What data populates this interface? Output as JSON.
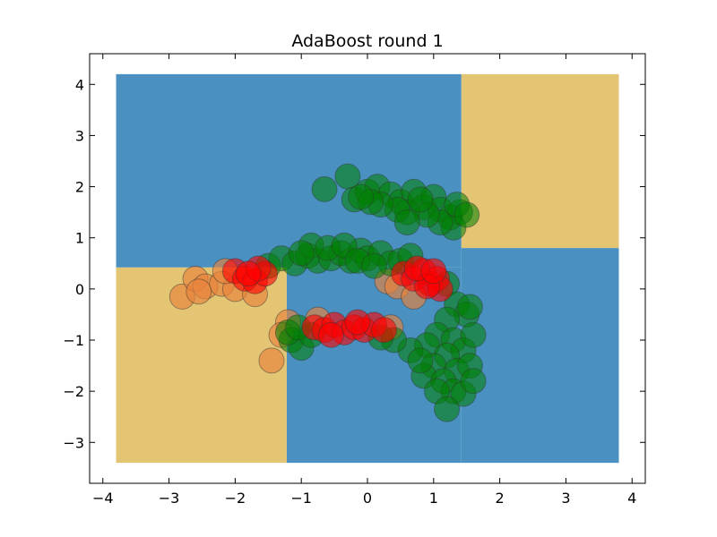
{
  "chart_data": {
    "type": "scatter",
    "title": "AdaBoost round 1",
    "xlabel": "",
    "ylabel": "",
    "xlim": [
      -4.2,
      4.2
    ],
    "ylim": [
      -3.8,
      4.6
    ],
    "x_ticks": [
      -4,
      -3,
      -2,
      -1,
      0,
      1,
      2,
      3,
      4
    ],
    "y_ticks": [
      -3,
      -2,
      -1,
      0,
      1,
      2,
      3,
      4
    ],
    "x_tick_labels": [
      "−4",
      "−3",
      "−2",
      "−1",
      "0",
      "1",
      "2",
      "3",
      "4"
    ],
    "y_tick_labels": [
      "−3",
      "−2",
      "−1",
      "0",
      "1",
      "2",
      "3",
      "4"
    ],
    "grid": false,
    "colors": {
      "region_a": "#4a91c2",
      "region_b": "#e3c574",
      "green_points": "#008000",
      "red_points": "#ff0000",
      "orange_points": "#e8823c"
    },
    "decision_regions": [
      {
        "class": "region_a",
        "x": [
          -3.8,
          1.42
        ],
        "y": [
          0.42,
          4.2
        ]
      },
      {
        "class": "region_b",
        "x": [
          1.42,
          3.8
        ],
        "y": [
          0.8,
          4.2
        ]
      },
      {
        "class": "region_b",
        "x": [
          -3.8,
          -1.22
        ],
        "y": [
          -3.4,
          0.42
        ]
      },
      {
        "class": "region_a",
        "x": [
          -1.22,
          1.42
        ],
        "y": [
          -3.4,
          0.42
        ]
      },
      {
        "class": "region_a",
        "x": [
          1.42,
          3.8
        ],
        "y": [
          -3.4,
          0.8
        ]
      }
    ],
    "series": [
      {
        "class": "green",
        "points": [
          [
            -0.3,
            2.2
          ],
          [
            -0.65,
            1.95
          ],
          [
            -0.2,
            1.75
          ],
          [
            0.0,
            1.9
          ],
          [
            0.15,
            2.0
          ],
          [
            0.35,
            1.85
          ],
          [
            0.5,
            1.7
          ],
          [
            0.7,
            1.9
          ],
          [
            0.85,
            1.6
          ],
          [
            1.0,
            1.8
          ],
          [
            1.1,
            1.55
          ],
          [
            1.25,
            1.4
          ],
          [
            1.4,
            1.5
          ],
          [
            1.3,
            1.2
          ],
          [
            1.1,
            1.3
          ],
          [
            0.9,
            1.45
          ],
          [
            0.6,
            1.5
          ],
          [
            0.45,
            1.55
          ],
          [
            0.2,
            1.65
          ],
          [
            0.05,
            1.7
          ],
          [
            -0.1,
            1.8
          ],
          [
            0.6,
            1.3
          ],
          [
            1.35,
            1.65
          ],
          [
            1.5,
            1.45
          ],
          [
            0.8,
            1.75
          ],
          [
            -1.5,
            0.45
          ],
          [
            -1.3,
            0.6
          ],
          [
            -1.1,
            0.5
          ],
          [
            -0.9,
            0.65
          ],
          [
            -0.75,
            0.55
          ],
          [
            -0.55,
            0.6
          ],
          [
            -0.4,
            0.7
          ],
          [
            -0.25,
            0.55
          ],
          [
            -0.1,
            0.75
          ],
          [
            0.0,
            0.6
          ],
          [
            0.2,
            0.7
          ],
          [
            0.35,
            0.5
          ],
          [
            0.5,
            0.55
          ],
          [
            0.65,
            0.65
          ],
          [
            -0.85,
            0.85
          ],
          [
            -0.6,
            0.8
          ],
          [
            -0.35,
            0.85
          ],
          [
            -0.15,
            0.55
          ],
          [
            0.1,
            0.45
          ],
          [
            -1.0,
            0.7
          ],
          [
            1.2,
            0.1
          ],
          [
            1.35,
            -0.3
          ],
          [
            1.5,
            -0.5
          ],
          [
            1.2,
            -0.6
          ],
          [
            1.05,
            -0.9
          ],
          [
            0.9,
            -1.1
          ],
          [
            1.3,
            -1.0
          ],
          [
            1.45,
            -1.2
          ],
          [
            1.6,
            -0.9
          ],
          [
            1.2,
            -1.3
          ],
          [
            1.0,
            -1.5
          ],
          [
            1.35,
            -1.6
          ],
          [
            1.55,
            -1.5
          ],
          [
            0.85,
            -1.7
          ],
          [
            1.15,
            -1.8
          ],
          [
            1.3,
            -2.0
          ],
          [
            1.05,
            -2.0
          ],
          [
            1.45,
            -2.05
          ],
          [
            1.2,
            -2.35
          ],
          [
            0.65,
            -1.2
          ],
          [
            0.4,
            -1.0
          ],
          [
            0.2,
            -0.95
          ],
          [
            0.8,
            -1.4
          ],
          [
            1.6,
            -1.8
          ],
          [
            1.55,
            -0.35
          ],
          [
            -1.15,
            -1.0
          ],
          [
            -1.0,
            -1.15
          ],
          [
            -1.2,
            -0.85
          ],
          [
            -0.85,
            -0.9
          ],
          [
            -1.05,
            -0.75
          ]
        ]
      },
      {
        "class": "red",
        "points": [
          [
            -2.0,
            0.35
          ],
          [
            -1.85,
            0.2
          ],
          [
            -1.7,
            0.15
          ],
          [
            -1.55,
            0.3
          ],
          [
            -1.65,
            0.4
          ],
          [
            -1.8,
            0.3
          ],
          [
            0.55,
            0.3
          ],
          [
            0.7,
            0.2
          ],
          [
            0.85,
            0.35
          ],
          [
            0.95,
            0.1
          ],
          [
            1.05,
            0.2
          ],
          [
            1.1,
            0.0
          ],
          [
            0.9,
            0.05
          ],
          [
            0.75,
            0.4
          ],
          [
            1.0,
            0.35
          ],
          [
            -0.8,
            -0.75
          ],
          [
            -0.65,
            -0.8
          ],
          [
            -0.5,
            -0.7
          ],
          [
            -0.35,
            -0.85
          ],
          [
            -0.2,
            -0.75
          ],
          [
            -0.05,
            -0.8
          ],
          [
            0.1,
            -0.7
          ],
          [
            0.25,
            -0.8
          ],
          [
            -0.55,
            -0.9
          ],
          [
            -0.15,
            -0.65
          ]
        ]
      },
      {
        "class": "orange",
        "points": [
          [
            -2.8,
            -0.15
          ],
          [
            -2.6,
            0.2
          ],
          [
            -2.45,
            0.05
          ],
          [
            -2.2,
            0.1
          ],
          [
            -2.0,
            0.0
          ],
          [
            -1.7,
            -0.1
          ],
          [
            -1.45,
            -1.4
          ],
          [
            -1.2,
            -0.65
          ],
          [
            -1.3,
            -0.9
          ],
          [
            -0.75,
            -0.6
          ],
          [
            0.3,
            0.15
          ],
          [
            0.45,
            0.05
          ],
          [
            0.7,
            -0.15
          ],
          [
            0.35,
            -0.75
          ],
          [
            -2.55,
            -0.05
          ],
          [
            -2.15,
            0.35
          ]
        ]
      }
    ]
  }
}
